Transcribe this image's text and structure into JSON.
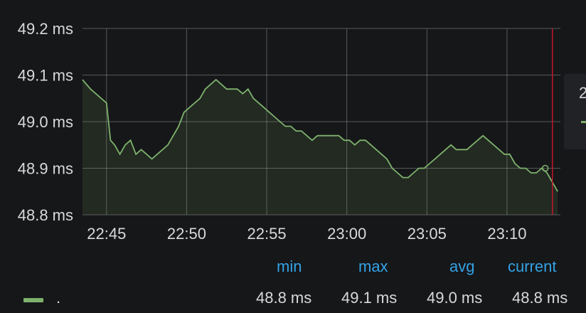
{
  "chart_data": {
    "type": "area",
    "y_unit": "ms",
    "ylim": [
      48.8,
      49.2
    ],
    "y_ticks": [
      "49.2 ms",
      "49.1 ms",
      "49.0 ms",
      "48.9 ms",
      "48.8 ms"
    ],
    "y_tick_values": [
      49.2,
      49.1,
      49.0,
      48.9,
      48.8
    ],
    "x_ticks": [
      "22:45",
      "22:50",
      "22:55",
      "23:00",
      "23:05",
      "23:10"
    ],
    "x_tick_values": [
      "22:45",
      "22:50",
      "22:55",
      "23:00",
      "23:05",
      "23:10"
    ],
    "xlim": [
      "22:43:30",
      "23:13:20"
    ],
    "grid": true,
    "series": [
      {
        "name": ".",
        "color": "#7eb26d",
        "x": [
          "22:43:30",
          "22:44:00",
          "22:44:20",
          "22:44:40",
          "22:45:00",
          "22:45:15",
          "22:45:30",
          "22:45:50",
          "22:46:10",
          "22:46:30",
          "22:46:50",
          "22:47:10",
          "22:47:30",
          "22:47:50",
          "22:48:10",
          "22:48:30",
          "22:48:50",
          "22:49:10",
          "22:49:30",
          "22:49:50",
          "22:50:10",
          "22:50:30",
          "22:50:50",
          "22:51:10",
          "22:51:30",
          "22:51:50",
          "22:52:10",
          "22:52:30",
          "22:52:50",
          "22:53:10",
          "22:53:30",
          "22:53:50",
          "22:54:10",
          "22:54:30",
          "22:54:50",
          "22:55:10",
          "22:55:30",
          "22:55:50",
          "22:56:10",
          "22:56:30",
          "22:56:50",
          "22:57:10",
          "22:57:30",
          "22:57:50",
          "22:58:10",
          "22:58:30",
          "22:58:50",
          "22:59:10",
          "22:59:30",
          "22:59:50",
          "23:00:10",
          "23:00:30",
          "23:00:50",
          "23:01:10",
          "23:01:30",
          "23:01:50",
          "23:02:10",
          "23:02:30",
          "23:02:50",
          "23:03:10",
          "23:03:30",
          "23:03:50",
          "23:04:10",
          "23:04:30",
          "23:04:50",
          "23:05:10",
          "23:05:30",
          "23:05:50",
          "23:06:10",
          "23:06:30",
          "23:06:50",
          "23:07:10",
          "23:07:30",
          "23:07:50",
          "23:08:10",
          "23:08:30",
          "23:08:50",
          "23:09:10",
          "23:09:30",
          "23:09:50",
          "23:10:10",
          "23:10:30",
          "23:10:50",
          "23:11:10",
          "23:11:30",
          "23:11:50",
          "23:12:10",
          "23:12:30",
          "23:12:50",
          "23:13:10"
        ],
        "values": [
          49.09,
          49.07,
          49.06,
          49.05,
          49.04,
          48.96,
          48.95,
          48.93,
          48.95,
          48.96,
          48.93,
          48.94,
          48.93,
          48.92,
          48.93,
          48.94,
          48.95,
          48.97,
          48.99,
          49.02,
          49.03,
          49.04,
          49.05,
          49.07,
          49.08,
          49.09,
          49.08,
          49.07,
          49.07,
          49.07,
          49.06,
          49.07,
          49.05,
          49.04,
          49.03,
          49.02,
          49.01,
          49.0,
          48.99,
          48.99,
          48.98,
          48.98,
          48.97,
          48.96,
          48.97,
          48.97,
          48.97,
          48.97,
          48.97,
          48.96,
          48.96,
          48.95,
          48.96,
          48.96,
          48.95,
          48.94,
          48.93,
          48.92,
          48.9,
          48.89,
          48.88,
          48.88,
          48.89,
          48.9,
          48.9,
          48.91,
          48.92,
          48.93,
          48.94,
          48.95,
          48.94,
          48.94,
          48.94,
          48.95,
          48.96,
          48.97,
          48.96,
          48.95,
          48.94,
          48.93,
          48.93,
          48.91,
          48.9,
          48.9,
          48.89,
          48.89,
          48.9,
          48.89,
          48.87,
          48.85
        ]
      }
    ],
    "marker_time": "23:12:50"
  },
  "tooltip": {
    "partial_text": "2"
  },
  "legend": {
    "headers": {
      "min": "min",
      "max": "max",
      "avg": "avg",
      "current": "current"
    },
    "series_name": ".",
    "values": {
      "min": "48.8 ms",
      "max": "49.1 ms",
      "avg": "49.0 ms",
      "current": "48.8 ms"
    },
    "swatch_color": "#7eb26d",
    "header_color": "#33a2e5"
  }
}
